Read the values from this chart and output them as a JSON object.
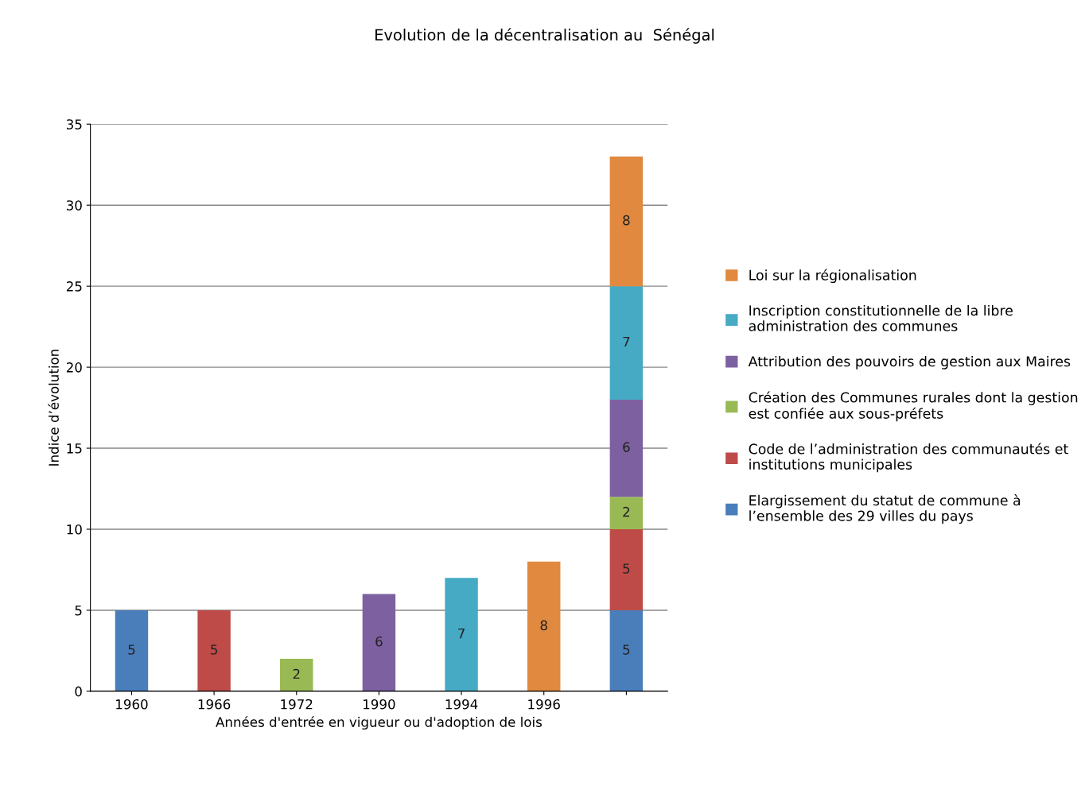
{
  "chart_data": {
    "type": "bar",
    "stacked": true,
    "title": "Evolution de la décentralisation au  Sénégal",
    "xlabel": "Années d'entrée en vigueur ou d'adoption de lois",
    "ylabel": "Indice d’évolution",
    "categories": [
      "1960",
      "1966",
      "1972",
      "1990",
      "1994",
      "1996",
      null
    ],
    "series": [
      {
        "name": "Elargissement du statut de commune à l’ensemble des 29 villes du pays",
        "color": "#4a7ebb",
        "values": [
          5,
          null,
          null,
          null,
          null,
          null,
          5
        ]
      },
      {
        "name": "Code de l’administration des communautés et institutions municipales",
        "color": "#be4b48",
        "values": [
          null,
          5,
          null,
          null,
          null,
          null,
          5
        ]
      },
      {
        "name": "Création des Communes rurales dont la gestion est confiée aux sous-préfets",
        "color": "#98b954",
        "values": [
          null,
          null,
          2,
          null,
          null,
          null,
          2
        ]
      },
      {
        "name": "Attribution des pouvoirs de gestion aux Maires",
        "color": "#7d60a0",
        "values": [
          null,
          null,
          null,
          6,
          null,
          null,
          6
        ]
      },
      {
        "name": "Inscription constitutionnelle de la libre administration des communes",
        "color": "#46aac5",
        "values": [
          null,
          null,
          null,
          null,
          7,
          null,
          7
        ]
      },
      {
        "name": "Loi sur la régionalisation",
        "color": "#e0893f",
        "values": [
          null,
          null,
          null,
          null,
          null,
          8,
          8
        ]
      }
    ],
    "ylim": [
      0,
      35
    ],
    "yticks": [
      0,
      5,
      10,
      15,
      20,
      25,
      30,
      35
    ],
    "grid": "y",
    "legend": "right",
    "data_labels": true
  }
}
